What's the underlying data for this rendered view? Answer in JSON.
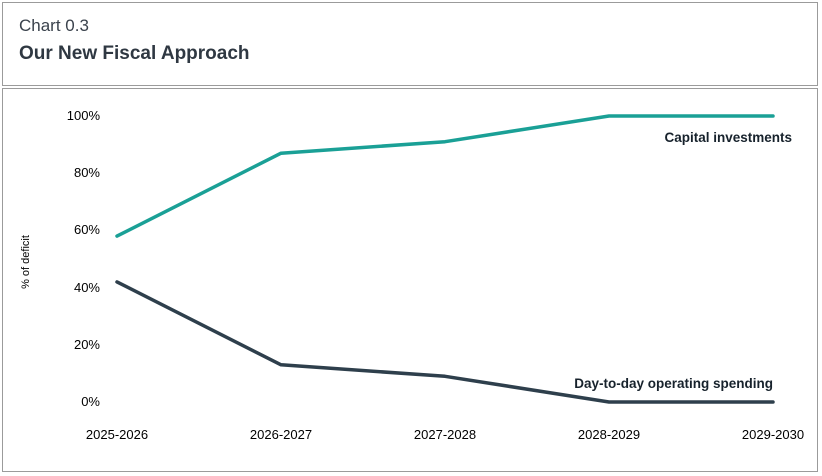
{
  "header": {
    "chart_number": "Chart 0.3",
    "title": "Our New Fiscal Approach"
  },
  "chart_data": {
    "type": "line",
    "title": "Our New Fiscal Approach",
    "categories": [
      "2025-2026",
      "2026-2027",
      "2027-2028",
      "2028-2029",
      "2029-2030"
    ],
    "series": [
      {
        "name": "Capital investments",
        "color": "#1aa096",
        "values": [
          58,
          87,
          91,
          100,
          100
        ]
      },
      {
        "name": "Day-to-day operating spending",
        "color": "#2e3f4c",
        "values": [
          42,
          13,
          9,
          0,
          0
        ]
      }
    ],
    "ylabel": "% of deficit",
    "y_ticks": [
      "0%",
      "20%",
      "40%",
      "60%",
      "80%",
      "100%"
    ],
    "ylim": [
      0,
      100
    ],
    "grid": false,
    "legend_position": "inline-right"
  }
}
